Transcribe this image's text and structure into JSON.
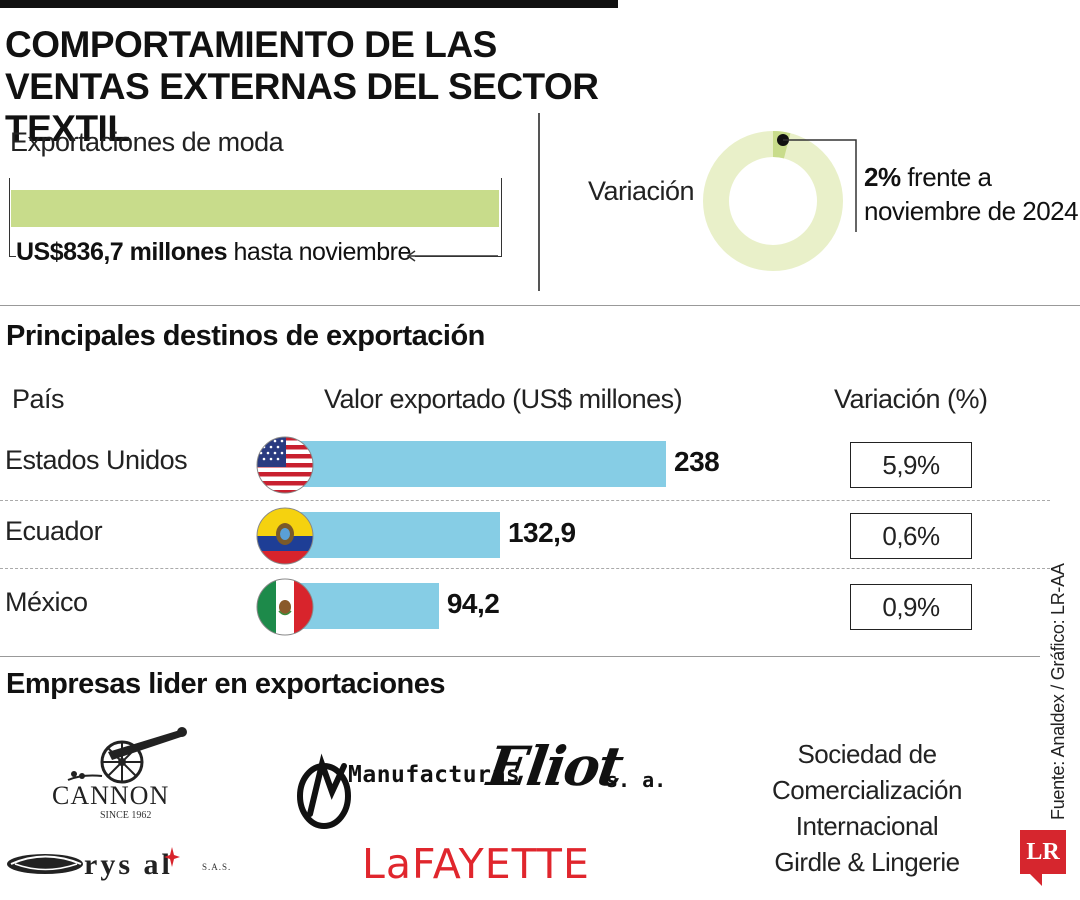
{
  "title": "COMPORTAMIENTO DE LAS VENTAS EXTERNAS DEL SECTOR TEXTIL",
  "exports_fashion": {
    "label": "Exportaciones de moda",
    "value_bold": "US$836,7 millones",
    "value_rest": "hasta noviembre"
  },
  "variation": {
    "label": "Variación",
    "pct_bold": "2%",
    "pct_rest": "frente a",
    "line2": "noviembre de 2024",
    "fraction": 0.02
  },
  "destinations": {
    "section_title": "Principales destinos de exportación",
    "col_country": "País",
    "col_value": "Valor exportado (US$ millones)",
    "col_variation": "Variación (%)"
  },
  "chart_data": {
    "type": "bar",
    "categories": [
      "Estados Unidos",
      "Ecuador",
      "México"
    ],
    "values": [
      238,
      132.9,
      94.2
    ],
    "value_labels": [
      "238",
      "132,9",
      "94,2"
    ],
    "variation_labels": [
      "5,9%",
      "0,6%",
      "0,9%"
    ],
    "xlabel": "Valor exportado (US$ millones)",
    "bar_color": "#86cde5"
  },
  "companies": {
    "section_title": "Empresas lider en exportaciones",
    "cannon": "CANNON",
    "cannon_since": "SINCE 1962",
    "manufacturas": "Manufacturas",
    "eliot": "Eliot",
    "sa": "s. a.",
    "crystal": "rys al",
    "crystal_sas": "S.A.S.",
    "lafayette": "LaFAYETTE",
    "girdle": "Sociedad de Comercialización Internacional Girdle & Lingerie"
  },
  "source": "Fuente: Analdex / Gráfico: LR-AA",
  "brand": "LR",
  "colors": {
    "green": "#c8dc8b",
    "green_light": "#e9f0c9",
    "blue": "#86cde5",
    "lafayette_red": "#e0262d",
    "lr_red": "#d6262e"
  }
}
